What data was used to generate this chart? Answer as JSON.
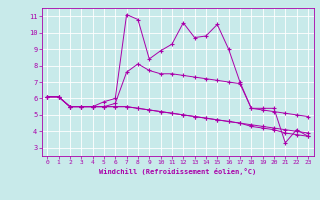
{
  "bg_color": "#c8eaea",
  "line_color": "#aa00aa",
  "grid_color": "#ffffff",
  "xlabel": "Windchill (Refroidissement éolien,°C)",
  "xlim": [
    -0.5,
    23.5
  ],
  "ylim": [
    2.5,
    11.5
  ],
  "yticks": [
    3,
    4,
    5,
    6,
    7,
    8,
    9,
    10,
    11
  ],
  "xticks": [
    0,
    1,
    2,
    3,
    4,
    5,
    6,
    7,
    8,
    9,
    10,
    11,
    12,
    13,
    14,
    15,
    16,
    17,
    18,
    19,
    20,
    21,
    22,
    23
  ],
  "series1_x": [
    0,
    1,
    2,
    3,
    4,
    5,
    6,
    7,
    8,
    9,
    10,
    11,
    12,
    13,
    14,
    15,
    16,
    17,
    18,
    19,
    20,
    21,
    22,
    23
  ],
  "series1_y": [
    6.1,
    6.1,
    5.5,
    5.5,
    5.5,
    5.8,
    6.0,
    11.1,
    10.8,
    8.4,
    8.9,
    9.3,
    10.6,
    9.7,
    9.8,
    10.5,
    9.0,
    7.0,
    5.4,
    5.4,
    5.4,
    3.3,
    4.1,
    3.7
  ],
  "series2_x": [
    0,
    1,
    2,
    3,
    4,
    5,
    6,
    7,
    8,
    9,
    10,
    11,
    12,
    13,
    14,
    15,
    16,
    17,
    18,
    19,
    20,
    21,
    22,
    23
  ],
  "series2_y": [
    6.1,
    6.1,
    5.5,
    5.5,
    5.5,
    5.5,
    5.7,
    7.6,
    8.1,
    7.7,
    7.5,
    7.5,
    7.4,
    7.3,
    7.2,
    7.1,
    7.0,
    6.9,
    5.4,
    5.3,
    5.2,
    5.1,
    5.0,
    4.9
  ],
  "series3_x": [
    0,
    1,
    2,
    3,
    4,
    5,
    6,
    7,
    8,
    9,
    10,
    11,
    12,
    13,
    14,
    15,
    16,
    17,
    18,
    19,
    20,
    21,
    22,
    23
  ],
  "series3_y": [
    6.1,
    6.1,
    5.5,
    5.5,
    5.5,
    5.5,
    5.5,
    5.5,
    5.4,
    5.3,
    5.2,
    5.1,
    5.0,
    4.9,
    4.8,
    4.7,
    4.6,
    4.5,
    4.4,
    4.3,
    4.2,
    4.1,
    4.0,
    3.9
  ],
  "series4_x": [
    0,
    1,
    2,
    3,
    4,
    5,
    6,
    7,
    8,
    9,
    10,
    11,
    12,
    13,
    14,
    15,
    16,
    17,
    18,
    19,
    20,
    21,
    22,
    23
  ],
  "series4_y": [
    6.1,
    6.1,
    5.5,
    5.5,
    5.5,
    5.5,
    5.5,
    5.5,
    5.4,
    5.3,
    5.2,
    5.1,
    5.0,
    4.9,
    4.8,
    4.7,
    4.6,
    4.5,
    4.3,
    4.2,
    4.1,
    3.9,
    3.8,
    3.7
  ]
}
